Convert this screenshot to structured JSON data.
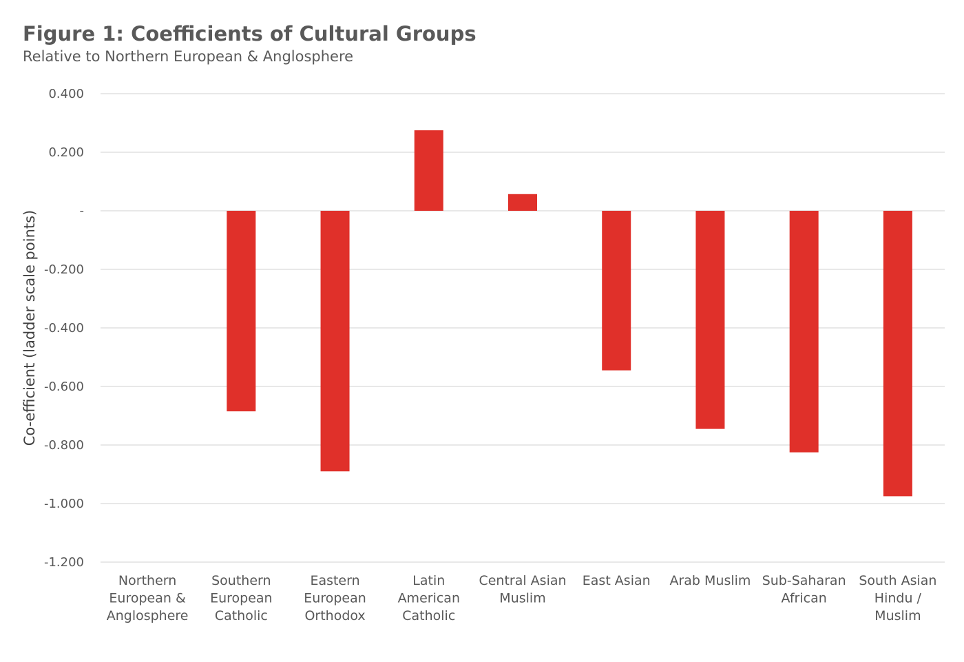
{
  "chart_data": {
    "type": "bar",
    "title": "Figure 1: Coefficients of Cultural Groups",
    "subtitle": "Relative to Northern European & Anglosphere",
    "ylabel": "Co-efficient (ladder scale points)",
    "xlabel": "",
    "ylim": [
      -1.2,
      0.4
    ],
    "yticks": [
      0.4,
      0.2,
      0,
      -0.2,
      -0.4,
      -0.6,
      -0.8,
      -1.0,
      -1.2
    ],
    "ytick_labels": [
      "0.400",
      "0.200",
      "-",
      "-0.200",
      "-0.400",
      "-0.600",
      "-0.800",
      "-1.000",
      "-1.200"
    ],
    "grid": true,
    "legend": "none",
    "bar_color": "#e0302a",
    "categories": [
      [
        "Northern",
        "European &",
        "Anglosphere"
      ],
      [
        "Southern",
        "European",
        "Catholic"
      ],
      [
        "Eastern",
        "European",
        "Orthodox"
      ],
      [
        "Latin",
        "American",
        "Catholic"
      ],
      [
        "Central Asian",
        "Muslim"
      ],
      [
        "East Asian"
      ],
      [
        "Arab Muslim"
      ],
      [
        "Sub-Saharan",
        "African"
      ],
      [
        "South Asian",
        "Hindu /",
        "Muslim"
      ]
    ],
    "values": [
      0,
      -0.685,
      -0.89,
      0.275,
      0.057,
      -0.545,
      -0.745,
      -0.825,
      -0.975
    ]
  }
}
